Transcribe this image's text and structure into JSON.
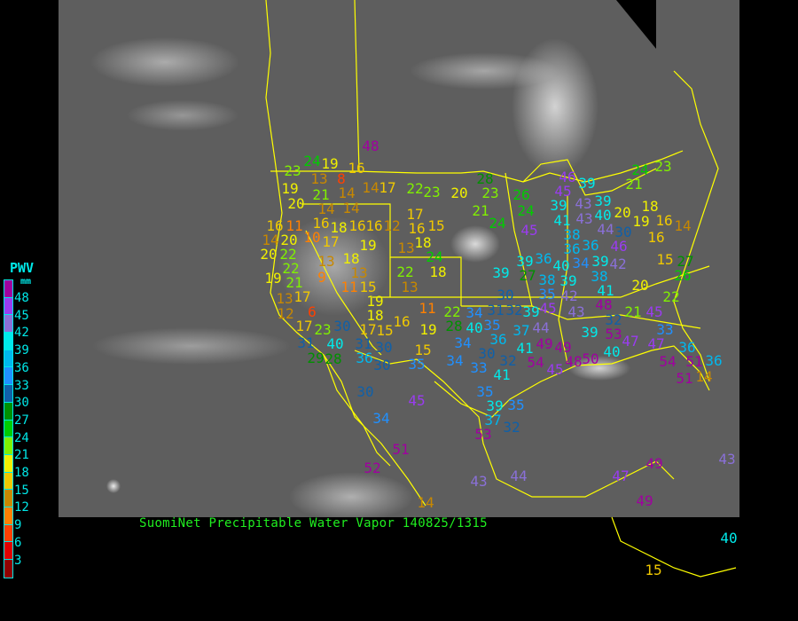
{
  "title": "SuomiNet Precipitable Water Vapor 140825/1315",
  "legend": {
    "title": "PWV",
    "unit": "mm",
    "labels": [
      "48",
      "45",
      "42",
      "39",
      "36",
      "33",
      "30",
      "27",
      "24",
      "21",
      "18",
      "15",
      "12",
      "9",
      "6",
      "3"
    ],
    "colors": [
      "#a000a0",
      "#9a3cf0",
      "#8a70d8",
      "#00eaea",
      "#00b8ee",
      "#2090ff",
      "#1060a8",
      "#009000",
      "#00cc00",
      "#80f000",
      "#f0f000",
      "#f0c800",
      "#c88800",
      "#ff8000",
      "#ff4000",
      "#e00000",
      "#900000"
    ]
  },
  "map": {
    "border_color": "#ffff00",
    "background": "#5e5e5e"
  },
  "stations": [
    23,
    24,
    19,
    16,
    13,
    8,
    14,
    14,
    17,
    22,
    23,
    20,
    28,
    23,
    19,
    20,
    21,
    14,
    14,
    16,
    17,
    21,
    24,
    16,
    11,
    18,
    16,
    16,
    12,
    16,
    15,
    14,
    20,
    10,
    17,
    19,
    18,
    13,
    24,
    20,
    22,
    18,
    22,
    13,
    19,
    21,
    9,
    13,
    22,
    18,
    17,
    11,
    15,
    13,
    39,
    30,
    13,
    12,
    6,
    19,
    18,
    11,
    22,
    34,
    17,
    23,
    30,
    17,
    16,
    19,
    28,
    40,
    35,
    36,
    31,
    40,
    31,
    15,
    30,
    34,
    29,
    28,
    36,
    15,
    30,
    30,
    35,
    34,
    33,
    31,
    24,
    23,
    21,
    46,
    45,
    39,
    26,
    39,
    43,
    39,
    40,
    20,
    18,
    19,
    16,
    14,
    24,
    41,
    43,
    44,
    30,
    16,
    38,
    45,
    36,
    36,
    46,
    39,
    36,
    40,
    34,
    39,
    42,
    15,
    27,
    27,
    38,
    39,
    38,
    26,
    35,
    42,
    41,
    48,
    20,
    22,
    32,
    39,
    45,
    43,
    32,
    21,
    45,
    53,
    39,
    33,
    37,
    44,
    47,
    47,
    36,
    41,
    49,
    49,
    40,
    54,
    48,
    50,
    54,
    51,
    36,
    32,
    41,
    45,
    51,
    14,
    48,
    30,
    45,
    34,
    35,
    39,
    35,
    37,
    32,
    53,
    51,
    52,
    14,
    43,
    44,
    47,
    49,
    43,
    49,
    40,
    15
  ]
}
